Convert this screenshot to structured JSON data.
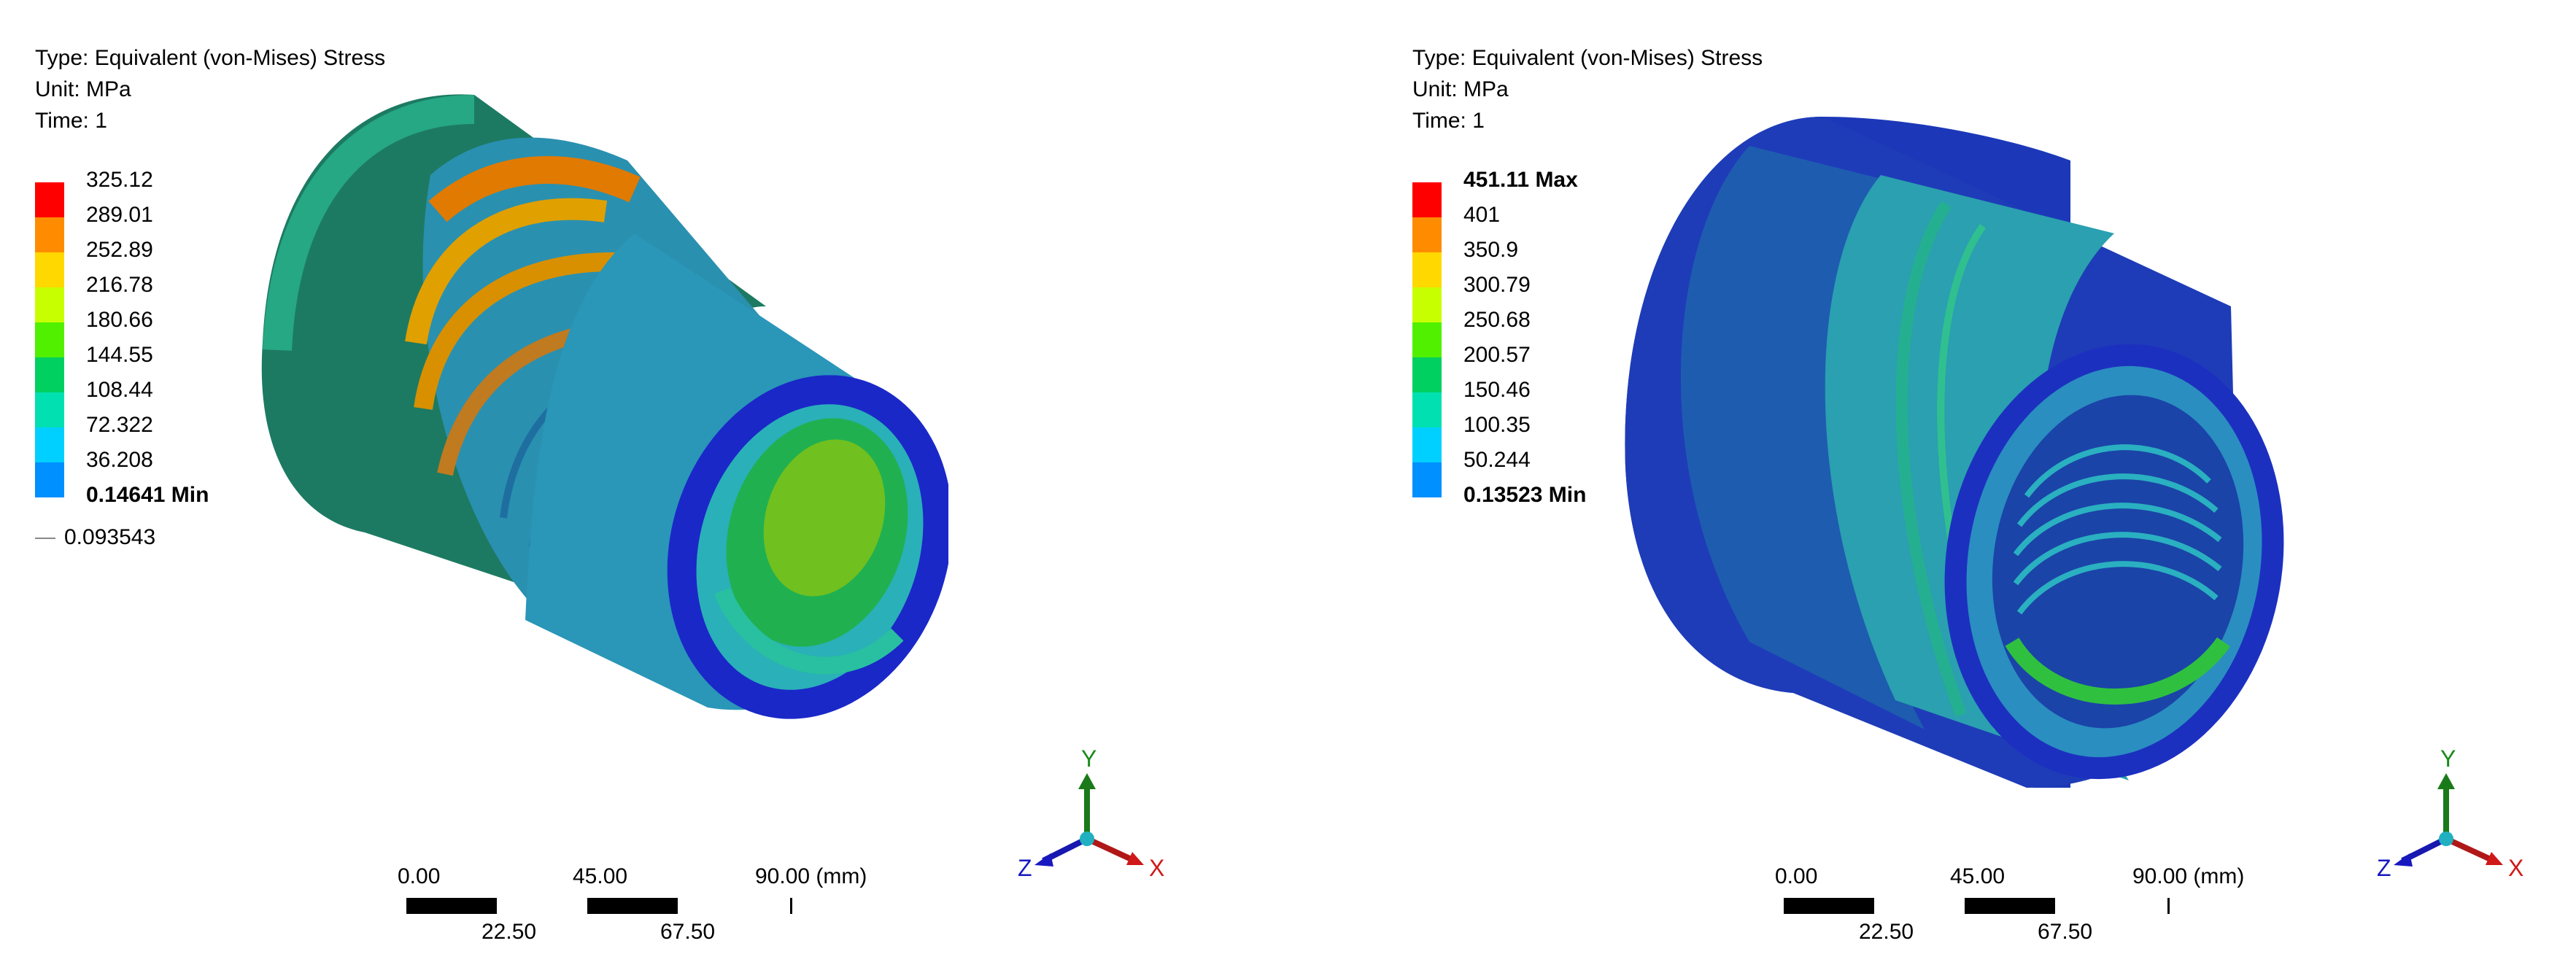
{
  "panels": [
    {
      "type_label": "Type: Equivalent (von-Mises) Stress",
      "unit_label": "Unit: MPa",
      "time_label": "Time: 1",
      "legend": [
        {
          "value": "325.12",
          "color": "#ff0000"
        },
        {
          "value": "289.01",
          "color": "#ff8c00"
        },
        {
          "value": "252.89",
          "color": "#ffd800"
        },
        {
          "value": "216.78",
          "color": "#c8ff00"
        },
        {
          "value": "180.66",
          "color": "#50f000"
        },
        {
          "value": "144.55",
          "color": "#00d060"
        },
        {
          "value": "108.44",
          "color": "#00e0b0"
        },
        {
          "value": "72.322",
          "color": "#00d0ff"
        },
        {
          "value": "36.208",
          "color": "#0090ff"
        },
        {
          "value": "0.14641 Min",
          "color": "#0000ff"
        }
      ],
      "legend_top_bold": false,
      "extra_value": "0.093543",
      "scale": {
        "t0": "0.00",
        "t45": "45.00",
        "t90": "90.00 (mm)",
        "t22": "22.50",
        "t67": "67.50"
      },
      "axes": {
        "x": "X",
        "y": "Y",
        "z": "Z"
      }
    },
    {
      "type_label": "Type: Equivalent (von-Mises) Stress",
      "unit_label": "Unit: MPa",
      "time_label": "Time: 1",
      "legend": [
        {
          "value": "451.11 Max",
          "color": "#ff0000"
        },
        {
          "value": "401",
          "color": "#ff8c00"
        },
        {
          "value": "350.9",
          "color": "#ffd800"
        },
        {
          "value": "300.79",
          "color": "#c8ff00"
        },
        {
          "value": "250.68",
          "color": "#50f000"
        },
        {
          "value": "200.57",
          "color": "#00d060"
        },
        {
          "value": "150.46",
          "color": "#00e0b0"
        },
        {
          "value": "100.35",
          "color": "#00d0ff"
        },
        {
          "value": "50.244",
          "color": "#0090ff"
        },
        {
          "value": "0.13523 Min",
          "color": "#0000ff"
        }
      ],
      "legend_top_bold": true,
      "scale": {
        "t0": "0.00",
        "t45": "45.00",
        "t90": "90.00 (mm)",
        "t22": "22.50",
        "t67": "67.50"
      },
      "axes": {
        "x": "X",
        "y": "Y",
        "z": "Z"
      }
    }
  ]
}
